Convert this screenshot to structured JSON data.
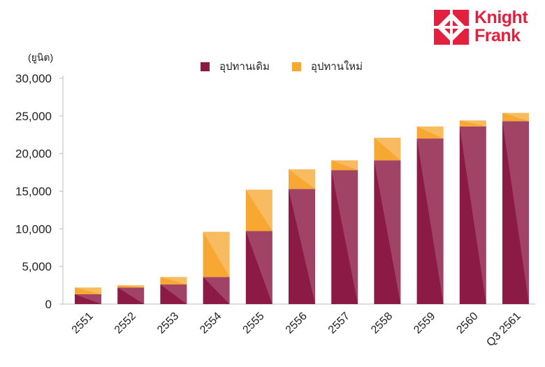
{
  "logo": {
    "line1": "Knight",
    "line2": "Frank",
    "color": "#e3203d"
  },
  "chart_data": {
    "type": "bar",
    "stacked": true,
    "ylabel": "(ยูนิต)",
    "ylim": [
      0,
      30000
    ],
    "yticks": [
      0,
      5000,
      10000,
      15000,
      20000,
      25000,
      30000
    ],
    "ytick_labels": [
      "0",
      "5,000",
      "10,000",
      "15,000",
      "20,000",
      "25,000",
      "30,000"
    ],
    "categories": [
      "2551",
      "2552",
      "2553",
      "2554",
      "2555",
      "2556",
      "2557",
      "2558",
      "2559",
      "2560",
      "Q3 2561"
    ],
    "series": [
      {
        "name": "อุปทานเดิม",
        "color": "#8b1a44",
        "values": [
          1300,
          2200,
          2600,
          3600,
          9700,
          15300,
          17800,
          19100,
          22000,
          23600,
          24300
        ]
      },
      {
        "name": "อุปทานใหม่",
        "color": "#f7a833",
        "values": [
          900,
          300,
          1000,
          6000,
          5500,
          2600,
          1300,
          3000,
          1600,
          800,
          1100
        ]
      }
    ],
    "legend_position": "top-center",
    "grid": false
  }
}
